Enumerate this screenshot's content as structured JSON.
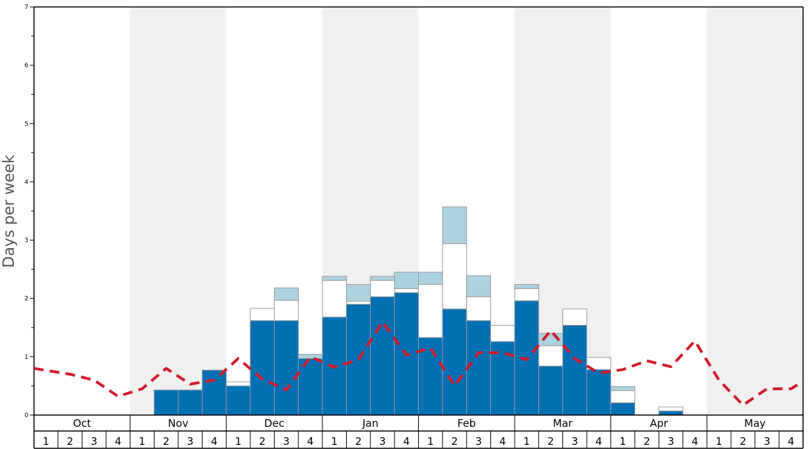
{
  "chart_data": {
    "type": "bar",
    "ylabel": "Days per week",
    "ylim": [
      0,
      7
    ],
    "yticks": [
      "0",
      "1",
      "2",
      "3",
      "4",
      "5",
      "6",
      "7"
    ],
    "months": [
      "Oct",
      "Nov",
      "Dec",
      "Jan",
      "Feb",
      "Mar",
      "Apr",
      "May"
    ],
    "weeks": [
      "1",
      "2",
      "3",
      "4"
    ],
    "colors": {
      "dark": "#0070b4",
      "white": "#ffffff",
      "light": "#acd3df",
      "line": "#d11a2a",
      "shade": "#f0f0f0"
    },
    "series": [
      {
        "values": [
          0,
          0,
          0,
          0,
          0,
          0.43,
          0.43,
          0.77,
          0.5,
          1.62,
          1.62,
          0.97,
          1.68,
          1.9,
          2.03,
          2.1,
          1.33,
          1.82,
          1.62,
          1.26,
          1.96,
          0.84,
          1.54,
          0.78,
          0.21,
          0,
          0.07,
          0,
          0,
          0,
          0,
          0
        ]
      },
      {
        "values": [
          0,
          0,
          0,
          0,
          0,
          0,
          0,
          0,
          0.07,
          0.21,
          0.35,
          0,
          0.63,
          0.05,
          0.28,
          0.07,
          0.91,
          1.12,
          0.41,
          0.28,
          0.21,
          0.35,
          0.28,
          0.21,
          0.21,
          0,
          0.07,
          0,
          0,
          0,
          0,
          0
        ]
      },
      {
        "values": [
          0,
          0,
          0,
          0,
          0,
          0,
          0,
          0,
          0,
          0,
          0.21,
          0.07,
          0.07,
          0.29,
          0.07,
          0.28,
          0.21,
          0.63,
          0.36,
          0,
          0.07,
          0.21,
          0,
          0,
          0.07,
          0,
          0,
          0,
          0,
          0,
          0,
          0
        ]
      },
      {
        "values": [
          0.8,
          0.7,
          0.6,
          0.32,
          0.45,
          0.8,
          0.53,
          0.6,
          0.97,
          0.62,
          0.43,
          1.0,
          0.82,
          0.95,
          1.6,
          1.03,
          1.15,
          0.5,
          1.07,
          1.07,
          0.95,
          1.45,
          0.97,
          0.72,
          0.78,
          0.93,
          0.83,
          1.27,
          0.6,
          0.17,
          0.45,
          0.45
        ]
      }
    ]
  }
}
